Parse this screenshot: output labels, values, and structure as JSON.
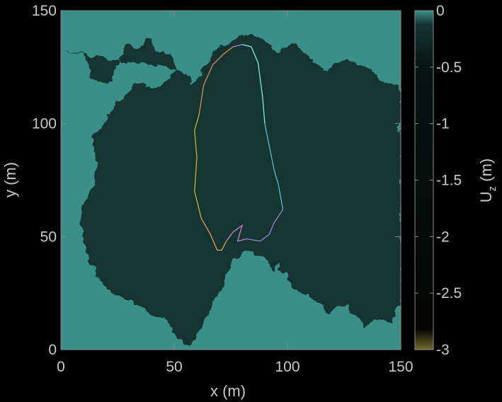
{
  "chart_data": {
    "type": "heatmap",
    "title": "",
    "xlabel": "x (m)",
    "ylabel": "y (m)",
    "colorbar_label_main": "U",
    "colorbar_label_sub": "z",
    "colorbar_label_unit": " (m)",
    "xlim": [
      0,
      150
    ],
    "ylim": [
      0,
      150
    ],
    "clim": [
      -3,
      0
    ],
    "x_ticks": [
      0,
      50,
      100,
      150
    ],
    "y_ticks": [
      0,
      50,
      100,
      150
    ],
    "x_tick_labels": [
      "0",
      "50",
      "100",
      "150"
    ],
    "y_tick_labels": [
      "0",
      "50",
      "100",
      "150"
    ],
    "colorbar_ticks": [
      0,
      -0.5,
      -1,
      -1.5,
      -2,
      -2.5,
      -3
    ],
    "colorbar_tick_labels": [
      "0",
      "-0.5",
      "-1",
      "-1.5",
      "-2",
      "-2.5",
      "-3"
    ],
    "colormap": {
      "stops": [
        {
          "value": 0,
          "color": "#3a8f88"
        },
        {
          "value": -0.15,
          "color": "#153532"
        },
        {
          "value": -0.5,
          "color": "#071412"
        },
        {
          "value": -2.8,
          "color": "#050503"
        },
        {
          "value": -3,
          "color": "#6e6a2c"
        }
      ]
    },
    "background_value": 0,
    "depression_value": -0.5,
    "depression_boundary": [
      [
        0,
        132
      ],
      [
        10,
        131
      ],
      [
        13,
        121
      ],
      [
        18,
        117
      ],
      [
        22,
        119
      ],
      [
        25,
        128
      ],
      [
        30,
        135
      ],
      [
        35,
        134
      ],
      [
        38,
        138
      ],
      [
        42,
        133
      ],
      [
        48,
        132
      ],
      [
        52,
        124
      ],
      [
        58,
        117
      ],
      [
        63,
        126
      ],
      [
        68,
        132
      ],
      [
        74,
        136
      ],
      [
        79,
        139
      ],
      [
        85,
        139
      ],
      [
        90,
        136
      ],
      [
        96,
        132
      ],
      [
        102,
        136
      ],
      [
        108,
        132
      ],
      [
        112,
        128
      ],
      [
        118,
        124
      ],
      [
        124,
        128
      ],
      [
        130,
        127
      ],
      [
        137,
        125
      ],
      [
        143,
        118
      ],
      [
        150,
        116
      ],
      [
        150,
        20
      ],
      [
        146,
        12
      ],
      [
        140,
        14
      ],
      [
        134,
        10
      ],
      [
        126,
        20
      ],
      [
        118,
        16
      ],
      [
        112,
        22
      ],
      [
        106,
        26
      ],
      [
        100,
        30
      ],
      [
        96,
        38
      ],
      [
        94,
        34
      ],
      [
        90,
        40
      ],
      [
        86,
        44
      ],
      [
        80,
        43
      ],
      [
        76,
        40
      ],
      [
        72,
        28
      ],
      [
        68,
        22
      ],
      [
        62,
        10
      ],
      [
        58,
        2
      ],
      [
        54,
        3
      ],
      [
        50,
        9
      ],
      [
        46,
        14
      ],
      [
        40,
        16
      ],
      [
        32,
        21
      ],
      [
        24,
        24
      ],
      [
        18,
        30
      ],
      [
        14,
        37
      ],
      [
        10,
        48
      ],
      [
        8,
        58
      ],
      [
        12,
        68
      ],
      [
        16,
        80
      ],
      [
        14,
        94
      ],
      [
        20,
        102
      ],
      [
        26,
        112
      ],
      [
        36,
        118
      ],
      [
        44,
        116
      ],
      [
        48,
        122
      ],
      [
        52,
        124
      ]
    ],
    "inner_contour": {
      "points": [
        [
          80,
          135
        ],
        [
          84,
          134
        ],
        [
          87,
          127
        ],
        [
          89,
          112
        ],
        [
          90,
          100
        ],
        [
          92,
          90
        ],
        [
          94,
          80
        ],
        [
          96,
          73
        ],
        [
          98,
          62
        ],
        [
          94,
          56
        ],
        [
          92,
          51
        ],
        [
          88,
          48
        ],
        [
          82,
          49
        ],
        [
          78,
          48
        ],
        [
          80,
          55
        ],
        [
          76,
          52
        ],
        [
          73,
          48
        ],
        [
          71,
          44
        ],
        [
          69,
          44
        ],
        [
          66,
          51
        ],
        [
          62,
          58
        ],
        [
          59,
          70
        ],
        [
          60,
          85
        ],
        [
          59,
          97
        ],
        [
          61,
          104
        ],
        [
          63,
          117
        ],
        [
          67,
          126
        ],
        [
          72,
          131
        ],
        [
          76,
          134
        ],
        [
          80,
          135
        ]
      ],
      "colors": [
        "#8fe4e0",
        "#6ab2d4",
        "#8e86d2",
        "#c482c8",
        "#d89a6a",
        "#c8b244",
        "#d88a5a",
        "#b97ad4",
        "#6ad2d2"
      ]
    }
  }
}
